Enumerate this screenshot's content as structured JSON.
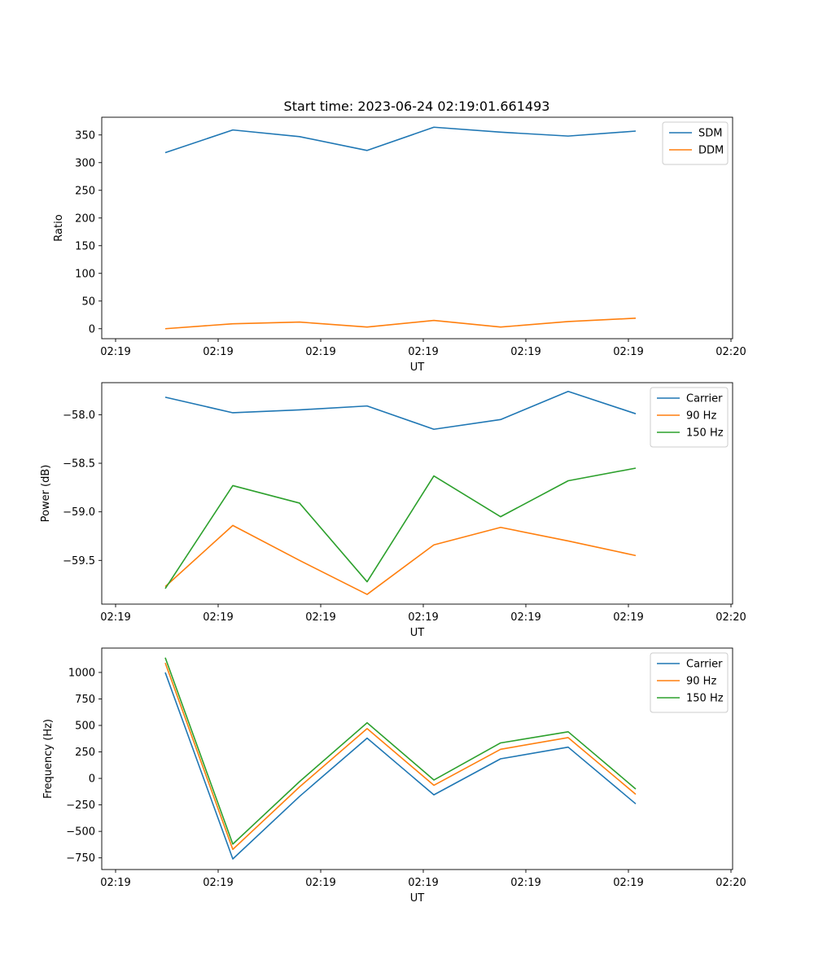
{
  "figure": {
    "title": "Start time: 2023-06-24 02:19:01.661493"
  },
  "chart_data": [
    {
      "type": "line",
      "xlabel": "UT",
      "ylabel": "Ratio",
      "x_tick_labels": [
        "02:19",
        "02:19",
        "02:19",
        "02:19",
        "02:19",
        "02:19",
        "02:20"
      ],
      "y_ticks": [
        0,
        50,
        100,
        150,
        200,
        250,
        300,
        350
      ],
      "ylim": [
        -18,
        382
      ],
      "legend_position": "top-right",
      "grid": false,
      "series": [
        {
          "name": "SDM",
          "color": "#1f77b4",
          "values": [
            318,
            359,
            347,
            322,
            364,
            355,
            348,
            357
          ]
        },
        {
          "name": "DDM",
          "color": "#ff7f0e",
          "values": [
            0,
            9,
            12,
            3,
            15,
            3,
            13,
            19
          ]
        }
      ]
    },
    {
      "type": "line",
      "xlabel": "UT",
      "ylabel": "Power (dB)",
      "x_tick_labels": [
        "02:19",
        "02:19",
        "02:19",
        "02:19",
        "02:19",
        "02:19",
        "02:20"
      ],
      "y_ticks": [
        -59.5,
        -59.0,
        -58.5,
        -58.0
      ],
      "y_tick_labels": [
        "−59.5",
        "−59.0",
        "−58.5",
        "−58.0"
      ],
      "ylim": [
        -59.95,
        -57.67
      ],
      "legend_position": "top-right",
      "grid": false,
      "series": [
        {
          "name": "Carrier",
          "color": "#1f77b4",
          "values": [
            -57.82,
            -57.98,
            -57.95,
            -57.91,
            -58.15,
            -58.05,
            -57.76,
            -57.99
          ]
        },
        {
          "name": "90 Hz",
          "color": "#ff7f0e",
          "values": [
            -59.77,
            -59.14,
            -59.5,
            -59.85,
            -59.34,
            -59.16,
            -59.3,
            -59.45
          ]
        },
        {
          "name": "150 Hz",
          "color": "#2ca02c",
          "values": [
            -59.79,
            -58.73,
            -58.91,
            -59.72,
            -58.63,
            -59.05,
            -58.68,
            -58.55
          ]
        }
      ]
    },
    {
      "type": "line",
      "xlabel": "UT",
      "ylabel": "Frequency (Hz)",
      "x_tick_labels": [
        "02:19",
        "02:19",
        "02:19",
        "02:19",
        "02:19",
        "02:19",
        "02:20"
      ],
      "y_ticks": [
        -750,
        -500,
        -250,
        0,
        250,
        500,
        750,
        1000
      ],
      "y_tick_labels": [
        "−750",
        "−500",
        "−250",
        "0",
        "250",
        "500",
        "750",
        "1000"
      ],
      "ylim": [
        -860,
        1230
      ],
      "legend_position": "top-right",
      "grid": false,
      "series": [
        {
          "name": "Carrier",
          "color": "#1f77b4",
          "values": [
            1000,
            -760,
            -170,
            380,
            -155,
            185,
            295,
            -240
          ]
        },
        {
          "name": "90 Hz",
          "color": "#ff7f0e",
          "values": [
            1090,
            -670,
            -80,
            470,
            -65,
            275,
            385,
            -150
          ]
        },
        {
          "name": "150 Hz",
          "color": "#2ca02c",
          "values": [
            1140,
            -620,
            -30,
            525,
            -15,
            335,
            440,
            -100
          ]
        }
      ]
    }
  ]
}
